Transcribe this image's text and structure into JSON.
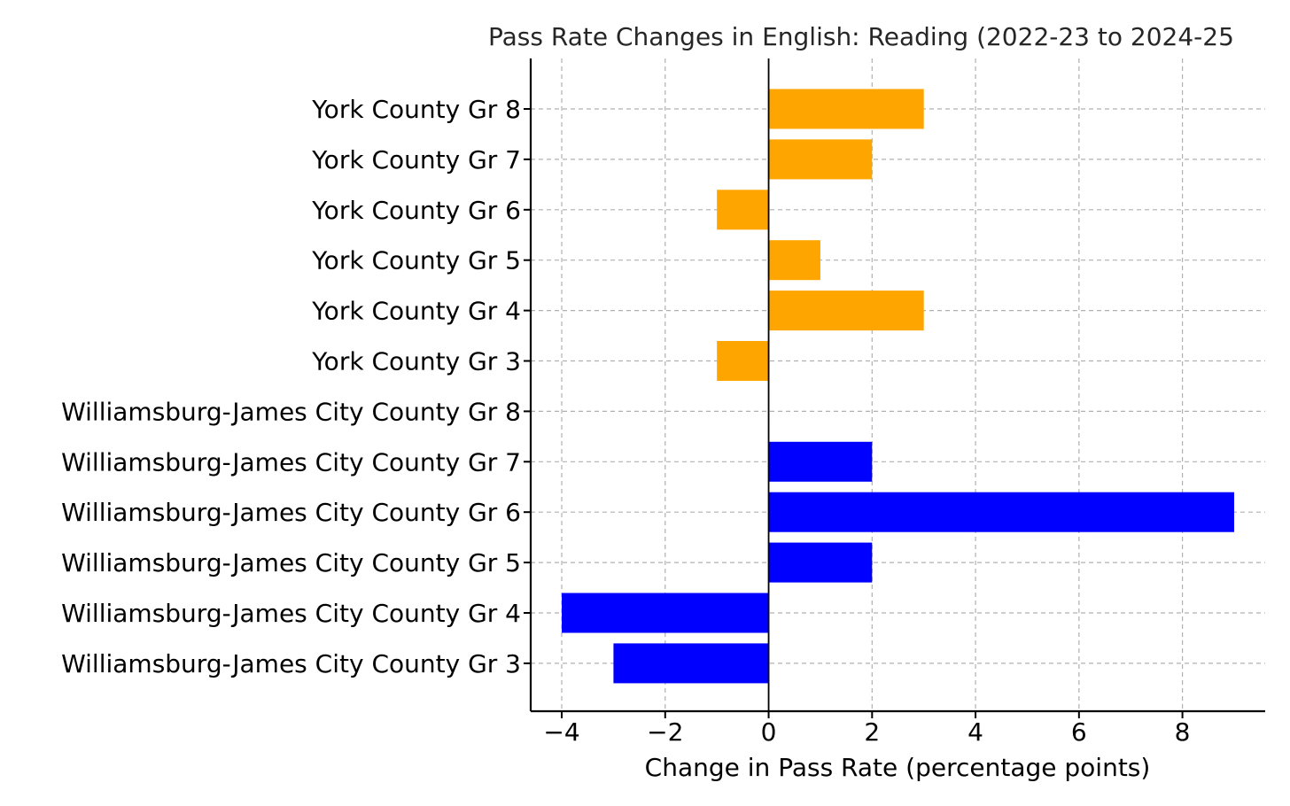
{
  "chart_data": {
    "type": "bar",
    "orientation": "horizontal",
    "title": "Pass Rate Changes in English: Reading (2022-23 to 2024-25",
    "xlabel": "Change in Pass Rate (percentage points)",
    "ylabel": "",
    "xlim": [
      -4.6,
      9.6
    ],
    "xticks": [
      -4,
      -2,
      0,
      2,
      4,
      6,
      8
    ],
    "xtick_labels": [
      "−4",
      "−2",
      "0",
      "2",
      "4",
      "6",
      "8"
    ],
    "grid": true,
    "categories": [
      "York County Gr 8",
      "York County Gr 7",
      "York County Gr 6",
      "York County Gr 5",
      "York County Gr 4",
      "York County Gr 3",
      "Williamsburg-James City County Gr 8",
      "Williamsburg-James City County Gr 7",
      "Williamsburg-James City County Gr 6",
      "Williamsburg-James City County Gr 5",
      "Williamsburg-James City County Gr 4",
      "Williamsburg-James City County Gr 3"
    ],
    "values": [
      3,
      2,
      -1,
      1,
      3,
      -1,
      0,
      2,
      9,
      2,
      -4,
      -3
    ],
    "bar_colors": [
      "#FFA500",
      "#FFA500",
      "#FFA500",
      "#FFA500",
      "#FFA500",
      "#FFA500",
      "#0000FF",
      "#0000FF",
      "#0000FF",
      "#0000FF",
      "#0000FF",
      "#0000FF"
    ]
  }
}
